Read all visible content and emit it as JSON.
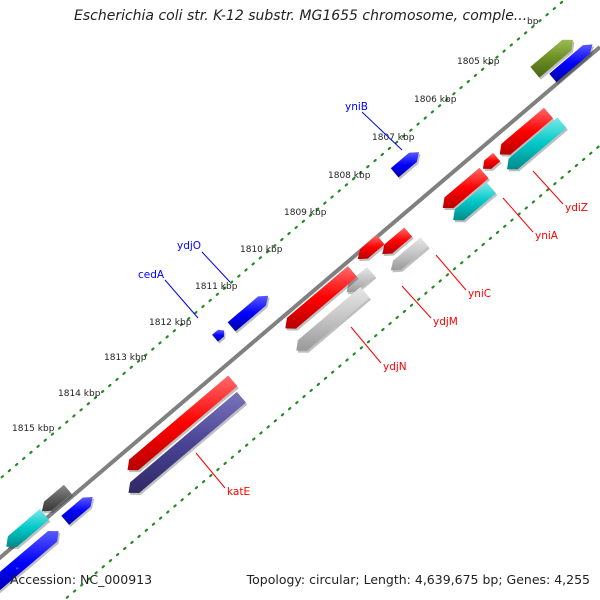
{
  "title": "Escherichia coli str. K-12 substr. MG1655 chromosome, comple...",
  "footer": {
    "accession": "Accession: NC_000913",
    "summary": "Topology: circular; Length: 4,639,675 bp; Genes: 4,255"
  },
  "scale_labels": [
    "1805 kbp",
    "1806 kbp",
    "1807 kbp",
    "1808 kbp",
    "1809 kbp",
    "1810 kbp",
    "1811 kbp",
    "1812 kbp",
    "1813 kbp",
    "1814 kbp",
    "1815 kbp"
  ],
  "partial_scale_label": "bp",
  "forward_gene_labels": [
    "yniB",
    "ydjO",
    "cedA"
  ],
  "reverse_gene_labels": [
    "ydiZ",
    "yniA",
    "yniC",
    "ydjM",
    "ydjN",
    "katE"
  ],
  "colors": {
    "forward_genes": "#0000ff",
    "reverse_genes": "#ff0000",
    "cds_reverse": "#00cccc",
    "other_gene": "#c0c0c0",
    "dark_gene": "#555555",
    "katE_cds": "#4b4496",
    "olive_gene": "#6b8e23",
    "tick_dots": "#228b22",
    "backbone": "#808080"
  }
}
